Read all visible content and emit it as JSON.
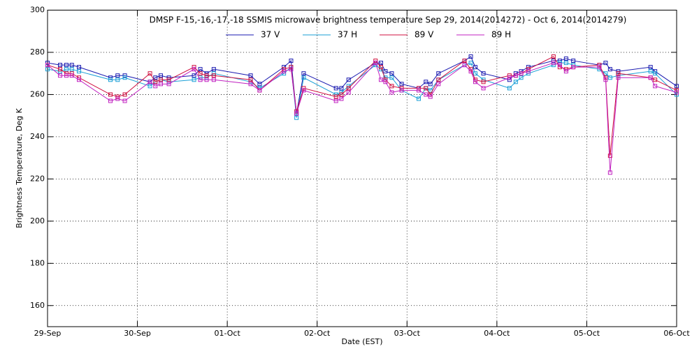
{
  "chart_data": {
    "type": "line",
    "title": "DMSP F-15,-16,-17,-18 SSMIS microwave brightness temperature Sep 29, 2014(2014272) - Oct  6, 2014(2014279)",
    "x_label": "Date (EST)",
    "y_label": "Brightness Temperature, Deg K",
    "x": [
      0.0,
      0.14,
      0.21,
      0.27,
      0.35,
      0.7,
      0.78,
      0.86,
      1.14,
      1.2,
      1.26,
      1.35,
      1.63,
      1.7,
      1.77,
      1.85,
      2.26,
      2.36,
      2.63,
      2.71,
      2.77,
      2.85,
      3.21,
      3.27,
      3.35,
      3.65,
      3.71,
      3.76,
      3.83,
      3.94,
      4.13,
      4.21,
      4.26,
      4.35,
      4.64,
      4.71,
      4.76,
      4.85,
      5.14,
      5.21,
      5.27,
      5.35,
      5.63,
      5.7,
      5.77,
      5.85,
      6.14,
      6.21,
      6.26,
      6.35,
      6.71,
      6.76,
      7.0
    ],
    "series": [
      {
        "name": "37 V",
        "color": "#1a1ab0",
        "values": [
          275,
          274,
          274,
          274,
          273,
          268,
          269,
          269,
          266,
          268,
          269,
          268,
          269,
          272,
          270,
          272,
          269,
          265,
          273,
          276,
          251,
          270,
          263,
          263,
          267,
          275,
          275,
          271,
          270,
          265,
          263,
          266,
          265,
          270,
          276,
          278,
          273,
          270,
          267,
          270,
          271,
          273,
          276,
          276,
          277,
          276,
          274,
          275,
          272,
          271,
          273,
          271,
          264
        ]
      },
      {
        "name": "37 H",
        "color": "#1a9fd6",
        "values": [
          272,
          271,
          272,
          272,
          271,
          267,
          267,
          268,
          264,
          266,
          267,
          266,
          267,
          268,
          268,
          270,
          266,
          263,
          270,
          273,
          249,
          268,
          260,
          261,
          264,
          274,
          272,
          268,
          268,
          262,
          258,
          263,
          262,
          267,
          274,
          275,
          270,
          267,
          263,
          266,
          268,
          270,
          274,
          275,
          275,
          274,
          272,
          270,
          268,
          269,
          271,
          270,
          260
        ]
      },
      {
        "name": "89 V",
        "color": "#d01040",
        "values": [
          274,
          272,
          270,
          270,
          268,
          260,
          259,
          260,
          270,
          266,
          267,
          267,
          273,
          270,
          269,
          269,
          267,
          262,
          272,
          273,
          252,
          263,
          259,
          260,
          263,
          276,
          273,
          267,
          264,
          263,
          263,
          263,
          260,
          267,
          276,
          272,
          267,
          266,
          269,
          269,
          270,
          272,
          278,
          273,
          272,
          273,
          274,
          268,
          231,
          270,
          268,
          267,
          262
        ]
      },
      {
        "name": "89 H",
        "color": "#c020c0",
        "values": [
          274,
          269,
          269,
          269,
          267,
          257,
          258,
          257,
          266,
          264,
          265,
          265,
          272,
          267,
          267,
          267,
          265,
          262,
          271,
          272,
          251,
          262,
          257,
          258,
          261,
          275,
          267,
          266,
          261,
          262,
          262,
          260,
          259,
          265,
          274,
          271,
          266,
          263,
          268,
          269,
          270,
          271,
          275,
          274,
          271,
          273,
          273,
          267,
          223,
          268,
          268,
          264,
          261
        ]
      }
    ],
    "xlim": [
      0,
      7
    ],
    "xticks": [
      {
        "value": 0,
        "label": "29-Sep"
      },
      {
        "value": 1,
        "label": "30-Sep"
      },
      {
        "value": 2,
        "label": "01-Oct"
      },
      {
        "value": 3,
        "label": "02-Oct"
      },
      {
        "value": 4,
        "label": "03-Oct"
      },
      {
        "value": 5,
        "label": "04-Oct"
      },
      {
        "value": 6,
        "label": "05-Oct"
      },
      {
        "value": 7,
        "label": "06-Oct"
      }
    ],
    "ylim": [
      150,
      300
    ],
    "yticks": [
      160,
      180,
      200,
      220,
      240,
      260,
      280,
      300
    ],
    "grid": true
  }
}
